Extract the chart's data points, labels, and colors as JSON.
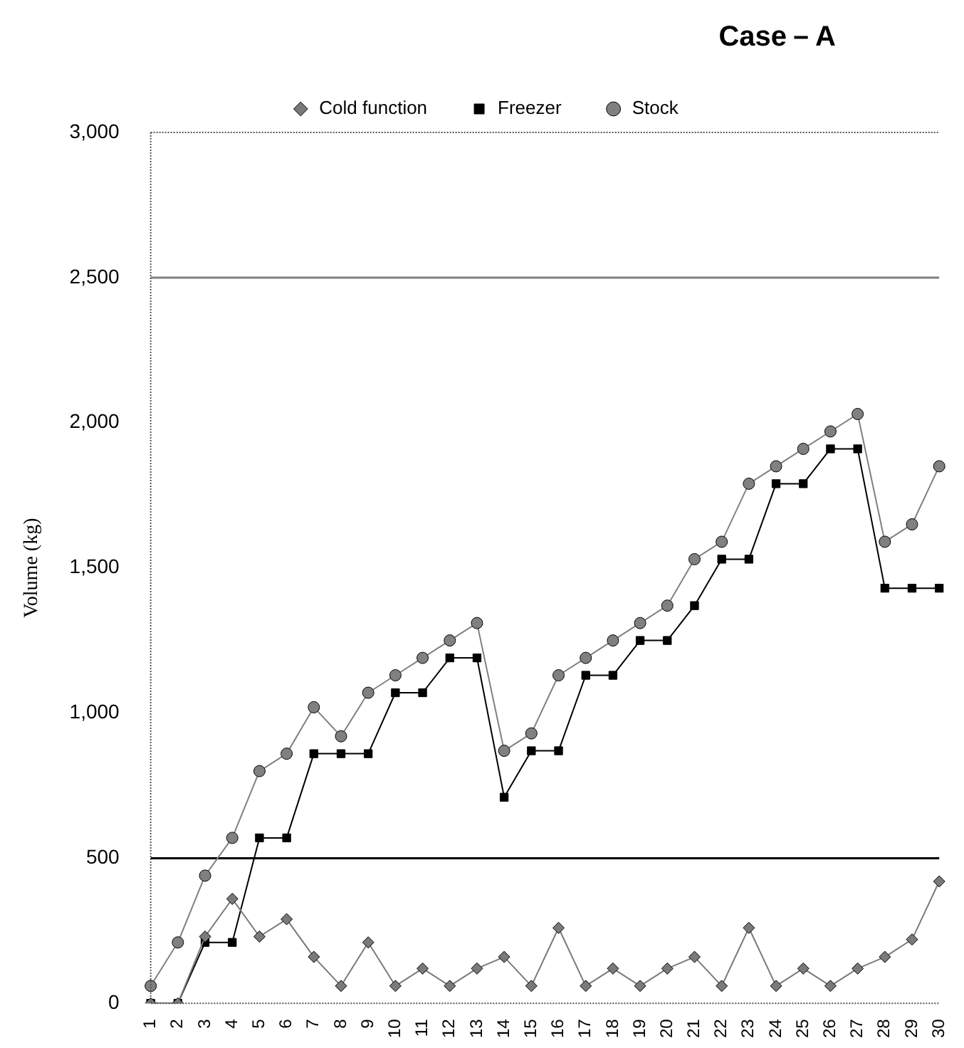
{
  "chart_data": {
    "type": "line",
    "title": "Case－A",
    "ylabel": "Volume (kg)",
    "categories": [
      "1",
      "2",
      "3",
      "4",
      "5",
      "6",
      "7",
      "8",
      "9",
      "10",
      "11",
      "12",
      "13",
      "14",
      "15",
      "16",
      "17",
      "18",
      "19",
      "20",
      "21",
      "22",
      "23",
      "24",
      "25",
      "26",
      "27",
      "28",
      "29",
      "30"
    ],
    "series": [
      {
        "name": "Cold function",
        "color": "#7a7a7a",
        "marker": "diamond",
        "values": [
          0,
          0,
          230,
          360,
          230,
          290,
          160,
          60,
          210,
          60,
          120,
          60,
          120,
          160,
          60,
          260,
          60,
          120,
          60,
          120,
          160,
          60,
          260,
          60,
          120,
          60,
          120,
          160,
          220,
          420
        ]
      },
      {
        "name": "Freezer",
        "color": "#000000",
        "marker": "square",
        "values": [
          0,
          0,
          210,
          210,
          570,
          570,
          860,
          860,
          860,
          1070,
          1070,
          1190,
          1190,
          710,
          870,
          870,
          1130,
          1130,
          1250,
          1250,
          1370,
          1530,
          1530,
          1790,
          1790,
          1910,
          1910,
          1430,
          1430,
          1430
        ]
      },
      {
        "name": "Stock",
        "color": "#808080",
        "marker": "circle",
        "values": [
          60,
          210,
          440,
          570,
          800,
          860,
          1020,
          920,
          1070,
          1130,
          1190,
          1250,
          1310,
          870,
          930,
          1130,
          1190,
          1250,
          1310,
          1370,
          1530,
          1590,
          1790,
          1850,
          1910,
          1970,
          2030,
          1590,
          1650,
          1850
        ]
      }
    ],
    "ylim": [
      0,
      3000
    ],
    "yticks": [
      {
        "value": 0,
        "label": "0"
      },
      {
        "value": 500,
        "label": "500"
      },
      {
        "value": 1000,
        "label": "1,000"
      },
      {
        "value": 1500,
        "label": "1,500"
      },
      {
        "value": 2000,
        "label": "2,000"
      },
      {
        "value": 2500,
        "label": "2,500"
      },
      {
        "value": 3000,
        "label": "3,000"
      }
    ],
    "ref_lines": [
      {
        "axis": "y",
        "value": 500,
        "color": "#000000"
      },
      {
        "axis": "y",
        "value": 2500,
        "color": "#808080"
      }
    ],
    "grid": false,
    "legend": "top",
    "line_style": "solid"
  }
}
